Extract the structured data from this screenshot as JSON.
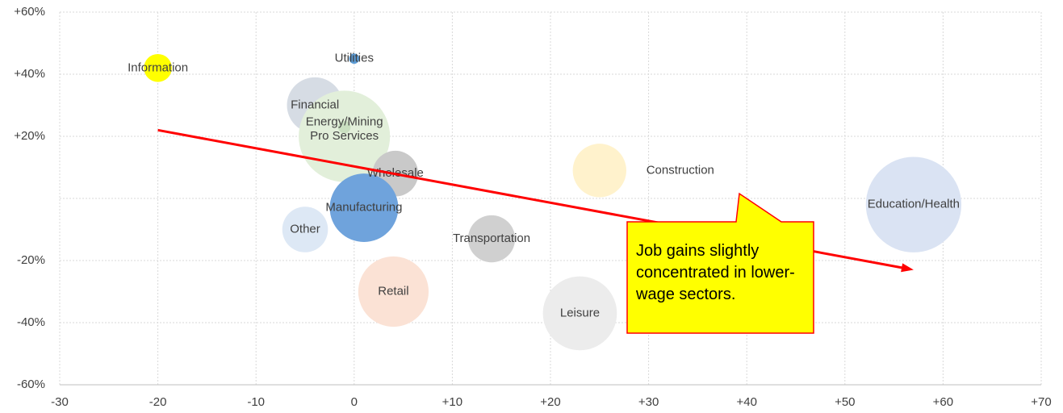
{
  "chart_data": {
    "type": "bubble",
    "annotation": "Job gains slightly concentrated in lower-wage sectors.",
    "series": [
      {
        "name": "Information",
        "color": "#ffff00",
        "x": -20,
        "y": 42,
        "size": 3
      },
      {
        "name": "Utilities",
        "color": "#5b9bd5",
        "x": 0,
        "y": 45,
        "size": 0.4
      },
      {
        "name": "Financial",
        "color": "#d6dce4",
        "x": -4,
        "y": 30,
        "size": 12
      },
      {
        "name": "Pro Services",
        "color": "#e2efda",
        "x": -1,
        "y": 20,
        "size": 32
      },
      {
        "name": "Energy/Mining",
        "color": "#c9dfc0",
        "x": -1,
        "y": 23,
        "size": 0.6
      },
      {
        "name": "Wholesale",
        "color": "#c9c9c9",
        "x": 4.2,
        "y": 8,
        "size": 8
      },
      {
        "name": "Manufacturing",
        "color": "#6fa3dc",
        "x": 1,
        "y": -3,
        "size": 18
      },
      {
        "name": "Other",
        "color": "#dde8f5",
        "x": -5,
        "y": -10,
        "size": 8
      },
      {
        "name": "Transportation",
        "color": "#d0d0d0",
        "x": 14,
        "y": -13,
        "size": 8.5
      },
      {
        "name": "Retail",
        "color": "#fbe2d5",
        "x": 4,
        "y": -30,
        "size": 19
      },
      {
        "name": "Leisure",
        "color": "#ececec",
        "x": 23,
        "y": -37,
        "size": 21
      },
      {
        "name": "Construction",
        "color": "#fff2cc",
        "x": 25,
        "y": 9,
        "size": 11
      },
      {
        "name": "Education/Health",
        "color": "#dae3f3",
        "x": 57,
        "y": -2,
        "size": 35
      }
    ],
    "trend": {
      "color": "#ff0000",
      "x": [
        -20,
        57
      ],
      "y": [
        22,
        -23
      ]
    },
    "xlim": [
      -30,
      70
    ],
    "xticks": [
      -30,
      -20,
      -10,
      0,
      {
        "value": 10,
        "label": "+10"
      },
      {
        "value": 20,
        "label": "+20"
      },
      {
        "value": 30,
        "label": "+30"
      },
      {
        "value": 40,
        "label": "+40"
      },
      {
        "value": 50,
        "label": "+50"
      },
      {
        "value": 60,
        "label": "+60"
      },
      {
        "value": 70,
        "label": "+70"
      }
    ],
    "ylim": [
      -60,
      60
    ],
    "yticks": [
      {
        "value": -60,
        "label": "-60%"
      },
      {
        "value": -40,
        "label": "-40%"
      },
      {
        "value": -20,
        "label": "-20%"
      },
      {
        "value": 0,
        "label": null
      },
      {
        "value": 20,
        "label": "+20%"
      },
      {
        "value": 40,
        "label": "+40%"
      },
      {
        "value": 60,
        "label": "+60%"
      }
    ],
    "grid": true
  }
}
